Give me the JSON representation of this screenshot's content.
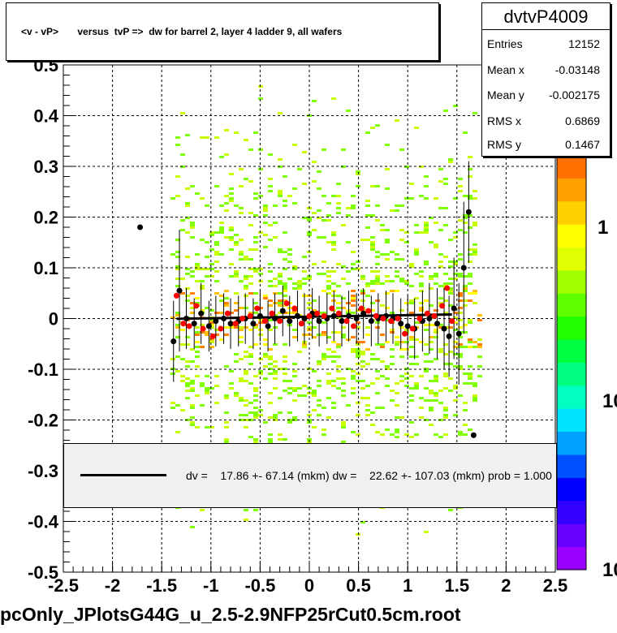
{
  "chart_data": {
    "type": "scatter",
    "title": "<v - vP>       versus  tvP =>  dw for barrel 2, layer 4 ladder 9, all wafers",
    "histogram_name": "dvtvP4009",
    "xlim": [
      -2.5,
      2.5
    ],
    "ylim": [
      -0.5,
      0.5
    ],
    "x_ticks": [
      "-2.5",
      "-2",
      "-1.5",
      "-1",
      "-0.5",
      "0",
      "0.5",
      "1",
      "1.5",
      "2",
      "2.5"
    ],
    "y_ticks": [
      "-0.5",
      "-0.4",
      "-0.3",
      "-0.2",
      "-0.1",
      "0",
      "0.1",
      "0.2",
      "0.3",
      "0.4",
      "0.5"
    ],
    "palette_labels": [
      "1",
      "10",
      "10"
    ],
    "grid": true,
    "stats": [
      {
        "key": "Entries",
        "value": "12152"
      },
      {
        "key": "Mean x",
        "value": "-0.03148"
      },
      {
        "key": "Mean y",
        "value": "-0.002175"
      },
      {
        "key": "RMS x",
        "value": "0.6869"
      },
      {
        "key": "RMS y",
        "value": "0.1467"
      }
    ],
    "fit_legend": "dv =    17.86 +- 67.14 (mkm) dw =    22.62 +- 107.03 (mkm) prob = 1.000",
    "fit_line": {
      "x": [
        -1.35,
        1.45
      ],
      "y": [
        -0.0005,
        0.008
      ]
    },
    "series": [
      {
        "color": "#000000",
        "points": [
          {
            "x": -1.72,
            "y": 0.18,
            "err": 0.0
          },
          {
            "x": -1.38,
            "y": -0.045,
            "err": 0.08
          },
          {
            "x": -1.32,
            "y": 0.055,
            "err": 0.12
          },
          {
            "x": -1.25,
            "y": 0.0,
            "err": 0.06
          },
          {
            "x": -1.17,
            "y": -0.01,
            "err": 0.05
          },
          {
            "x": -1.1,
            "y": 0.01,
            "err": 0.06
          },
          {
            "x": -1.02,
            "y": -0.015,
            "err": 0.05
          },
          {
            "x": -0.95,
            "y": -0.005,
            "err": 0.05
          },
          {
            "x": -0.87,
            "y": 0.0,
            "err": 0.05
          },
          {
            "x": -0.8,
            "y": -0.01,
            "err": 0.05
          },
          {
            "x": -0.72,
            "y": -0.005,
            "err": 0.05
          },
          {
            "x": -0.65,
            "y": 0.0,
            "err": 0.05
          },
          {
            "x": -0.57,
            "y": -0.01,
            "err": 0.05
          },
          {
            "x": -0.5,
            "y": 0.005,
            "err": 0.05
          },
          {
            "x": -0.42,
            "y": -0.015,
            "err": 0.05
          },
          {
            "x": -0.35,
            "y": 0.0,
            "err": 0.05
          },
          {
            "x": -0.27,
            "y": 0.015,
            "err": 0.05
          },
          {
            "x": -0.2,
            "y": -0.005,
            "err": 0.05
          },
          {
            "x": -0.12,
            "y": 0.005,
            "err": 0.05
          },
          {
            "x": -0.05,
            "y": 0.0,
            "err": 0.05
          },
          {
            "x": 0.03,
            "y": 0.01,
            "err": 0.05
          },
          {
            "x": 0.1,
            "y": -0.005,
            "err": 0.05
          },
          {
            "x": 0.18,
            "y": 0.0,
            "err": 0.05
          },
          {
            "x": 0.25,
            "y": 0.005,
            "err": 0.05
          },
          {
            "x": 0.33,
            "y": -0.005,
            "err": 0.05
          },
          {
            "x": 0.4,
            "y": 0.005,
            "err": 0.05
          },
          {
            "x": 0.48,
            "y": 0.0,
            "err": 0.05
          },
          {
            "x": 0.55,
            "y": 0.01,
            "err": 0.05
          },
          {
            "x": 0.63,
            "y": -0.005,
            "err": 0.05
          },
          {
            "x": 0.7,
            "y": 0.0,
            "err": 0.05
          },
          {
            "x": 0.78,
            "y": 0.005,
            "err": 0.05
          },
          {
            "x": 0.85,
            "y": 0.0,
            "err": 0.05
          },
          {
            "x": 0.93,
            "y": -0.01,
            "err": 0.05
          },
          {
            "x": 1.0,
            "y": -0.015,
            "err": 0.06
          },
          {
            "x": 1.07,
            "y": -0.02,
            "err": 0.06
          },
          {
            "x": 1.15,
            "y": -0.005,
            "err": 0.06
          },
          {
            "x": 1.22,
            "y": 0.0,
            "err": 0.07
          },
          {
            "x": 1.3,
            "y": -0.01,
            "err": 0.07
          },
          {
            "x": 1.37,
            "y": -0.02,
            "err": 0.08
          },
          {
            "x": 1.42,
            "y": -0.035,
            "err": 0.08
          },
          {
            "x": 1.47,
            "y": 0.02,
            "err": 0.1
          },
          {
            "x": 1.52,
            "y": -0.03,
            "err": 0.1
          },
          {
            "x": 1.57,
            "y": 0.1,
            "err": 0.13
          },
          {
            "x": 1.62,
            "y": 0.21,
            "err": 0.1
          },
          {
            "x": 1.67,
            "y": -0.23,
            "err": 0.0
          }
        ]
      },
      {
        "color": "#ff0000",
        "points": [
          {
            "x": -1.35,
            "y": 0.045,
            "err": 0.0
          },
          {
            "x": -1.28,
            "y": -0.01,
            "err": 0.0
          },
          {
            "x": -1.22,
            "y": -0.015,
            "err": 0.0
          },
          {
            "x": -1.15,
            "y": 0.025,
            "err": 0.0
          },
          {
            "x": -1.08,
            "y": -0.02,
            "err": 0.0
          },
          {
            "x": -0.98,
            "y": -0.035,
            "err": 0.0
          },
          {
            "x": -0.9,
            "y": -0.02,
            "err": 0.0
          },
          {
            "x": -0.83,
            "y": 0.01,
            "err": 0.0
          },
          {
            "x": -0.75,
            "y": -0.01,
            "err": 0.0
          },
          {
            "x": -0.68,
            "y": 0.0,
            "err": 0.0
          },
          {
            "x": -0.6,
            "y": 0.005,
            "err": 0.0
          },
          {
            "x": -0.53,
            "y": 0.02,
            "err": 0.0
          },
          {
            "x": -0.45,
            "y": -0.005,
            "err": 0.0
          },
          {
            "x": -0.38,
            "y": 0.01,
            "err": 0.0
          },
          {
            "x": -0.3,
            "y": -0.005,
            "err": 0.0
          },
          {
            "x": -0.23,
            "y": 0.03,
            "err": 0.0
          },
          {
            "x": -0.15,
            "y": 0.02,
            "err": 0.0
          },
          {
            "x": -0.08,
            "y": -0.01,
            "err": 0.0
          },
          {
            "x": 0.0,
            "y": 0.005,
            "err": 0.0
          },
          {
            "x": 0.08,
            "y": 0.01,
            "err": 0.0
          },
          {
            "x": 0.15,
            "y": 0.005,
            "err": 0.0
          },
          {
            "x": 0.23,
            "y": 0.02,
            "err": 0.0
          },
          {
            "x": 0.3,
            "y": 0.01,
            "err": 0.0
          },
          {
            "x": 0.38,
            "y": -0.005,
            "err": 0.0
          },
          {
            "x": 0.45,
            "y": -0.015,
            "err": 0.0
          },
          {
            "x": 0.53,
            "y": 0.02,
            "err": 0.0
          },
          {
            "x": 0.6,
            "y": 0.015,
            "err": 0.0
          },
          {
            "x": 0.68,
            "y": 0.005,
            "err": 0.0
          },
          {
            "x": 0.75,
            "y": 0.0,
            "err": 0.0
          },
          {
            "x": 0.83,
            "y": -0.005,
            "err": 0.0
          },
          {
            "x": 0.9,
            "y": 0.0,
            "err": 0.0
          },
          {
            "x": 0.97,
            "y": -0.03,
            "err": 0.0
          },
          {
            "x": 1.05,
            "y": -0.02,
            "err": 0.0
          },
          {
            "x": 1.12,
            "y": 0.0,
            "err": 0.0
          },
          {
            "x": 1.2,
            "y": 0.01,
            "err": 0.0
          },
          {
            "x": 1.27,
            "y": 0.005,
            "err": 0.0
          },
          {
            "x": 1.35,
            "y": 0.025,
            "err": 0.0
          },
          {
            "x": 1.4,
            "y": 0.06,
            "err": 0.0
          },
          {
            "x": 1.45,
            "y": -0.005,
            "err": 0.0
          }
        ]
      }
    ],
    "density": {
      "x_range": [
        -1.4,
        1.7
      ],
      "y_range": [
        -0.5,
        0.5
      ],
      "colors": [
        "#c8ff00",
        "#80ff00",
        "#ffff00",
        "#ffc000",
        "#ff8000"
      ]
    },
    "palette_colors": [
      "#9900ff",
      "#6600ff",
      "#3300ff",
      "#0000ff",
      "#0050ff",
      "#00a0ff",
      "#00e0ff",
      "#00ffc0",
      "#00ff80",
      "#00ff40",
      "#20ff00",
      "#60ff00",
      "#a0ff00",
      "#e0ff00",
      "#ffff00",
      "#ffd000",
      "#ffa000",
      "#ff7000"
    ]
  },
  "footer": "pcOnly_JPlotsG44G_u_2.5-2.9NFP25rCut0.5cm.root"
}
